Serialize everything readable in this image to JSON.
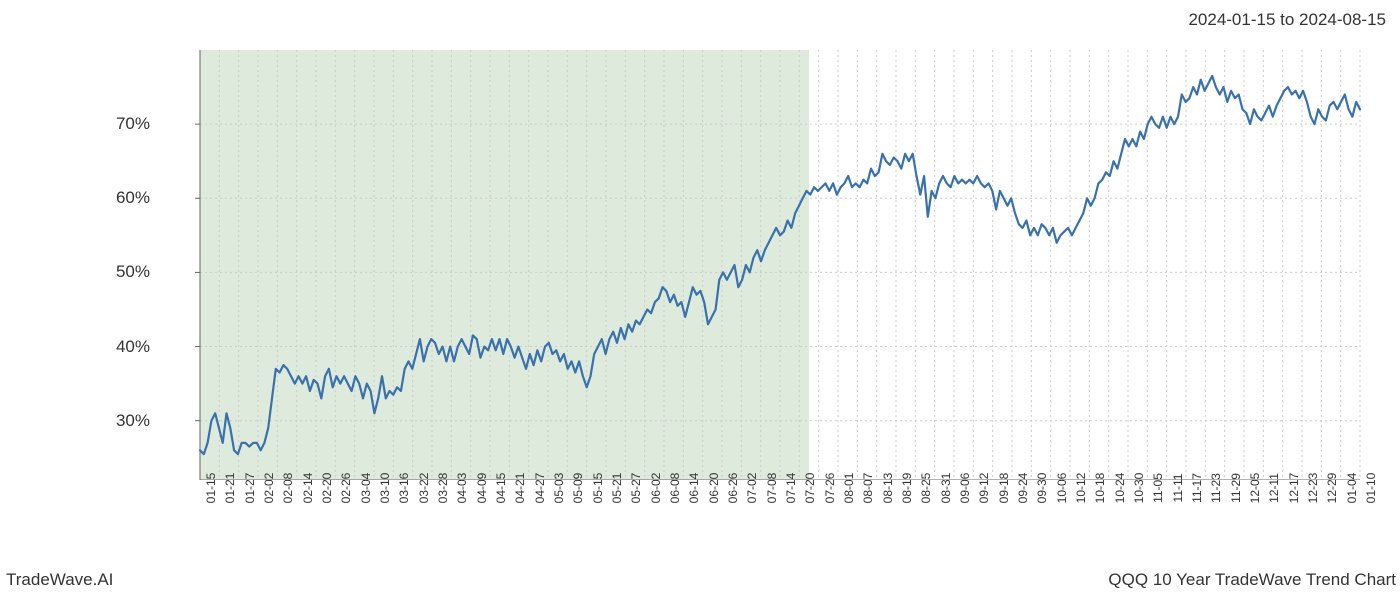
{
  "header": {
    "date_range": "2024-01-15 to 2024-08-15"
  },
  "footer": {
    "left": "TradeWave.AI",
    "right": "QQQ 10 Year TradeWave Trend Chart"
  },
  "chart": {
    "type": "line",
    "background_color": "#ffffff",
    "highlight_region": {
      "fill": "#deeadb",
      "opacity": 1.0,
      "x_start_index": 0,
      "x_end_index": 31
    },
    "line_color": "#3871ad",
    "line_width": 2.2,
    "axis_color": "#666666",
    "grid_color": "#cccccc",
    "grid_dash": "2,3",
    "y_axis": {
      "min": 22,
      "max": 80,
      "ticks": [
        30,
        40,
        50,
        60,
        70
      ],
      "tick_suffix": "%",
      "label_fontsize": 17,
      "label_color": "#333333"
    },
    "x_axis": {
      "labels": [
        "01-15",
        "01-21",
        "01-27",
        "02-02",
        "02-08",
        "02-14",
        "02-20",
        "02-26",
        "03-04",
        "03-10",
        "03-16",
        "03-22",
        "03-28",
        "04-03",
        "04-09",
        "04-15",
        "04-21",
        "04-27",
        "05-03",
        "05-09",
        "05-15",
        "05-21",
        "05-27",
        "06-02",
        "06-08",
        "06-14",
        "06-20",
        "06-26",
        "07-02",
        "07-08",
        "07-14",
        "07-20",
        "07-26",
        "08-01",
        "08-07",
        "08-13",
        "08-19",
        "08-25",
        "08-31",
        "09-06",
        "09-12",
        "09-18",
        "09-24",
        "09-30",
        "10-06",
        "10-12",
        "10-18",
        "10-24",
        "10-30",
        "11-05",
        "11-11",
        "11-17",
        "11-23",
        "11-29",
        "12-05",
        "12-11",
        "12-17",
        "12-23",
        "12-29",
        "01-04",
        "01-10"
      ],
      "label_fontsize": 12,
      "label_color": "#333333",
      "rotation": -90
    },
    "series": [
      {
        "name": "QQQ Trend",
        "color": "#3871ad",
        "values": [
          26,
          25.5,
          27,
          30,
          31,
          29,
          27,
          31,
          29,
          26,
          25.5,
          27,
          27,
          26.5,
          27,
          27,
          26,
          27,
          29,
          33,
          37,
          36.5,
          37.5,
          37,
          36,
          35,
          36,
          35,
          36,
          34,
          35.5,
          35,
          33,
          36,
          37,
          34.5,
          36,
          35,
          36,
          35,
          34,
          36,
          35,
          33,
          35,
          34,
          31,
          33,
          36,
          33,
          34,
          33.5,
          34.5,
          34,
          37,
          38,
          37,
          39,
          41,
          38,
          40,
          41,
          40.5,
          39,
          40,
          38,
          40,
          38,
          40,
          41,
          40,
          39,
          41.5,
          41,
          38.5,
          40,
          39.5,
          41,
          39.5,
          41,
          39,
          41,
          40,
          38.5,
          40,
          38.5,
          37,
          39,
          37.5,
          39.5,
          38,
          40,
          40.5,
          39,
          39.5,
          38,
          39,
          37,
          38,
          36.5,
          38,
          36,
          34.5,
          36,
          39,
          40,
          41,
          39,
          41,
          42,
          40.5,
          42.5,
          41,
          43,
          42,
          43.5,
          43,
          44,
          45,
          44.5,
          46,
          46.5,
          48,
          47.5,
          46,
          47,
          45.5,
          46,
          44,
          46,
          48,
          47,
          47.5,
          46,
          43,
          44,
          45,
          49,
          50,
          49,
          50,
          51,
          48,
          49,
          51,
          50,
          52,
          53,
          51.5,
          53,
          54,
          55,
          56,
          55,
          55.5,
          57,
          56,
          58,
          59,
          60,
          61,
          60.5,
          61.5,
          61,
          61.5,
          62,
          61,
          62,
          60.5,
          61.5,
          62,
          63,
          61.5,
          62,
          61.5,
          62.5,
          62,
          64,
          63,
          63.5,
          66,
          65,
          64.5,
          65.5,
          65,
          64,
          66,
          65,
          66,
          63,
          60.5,
          63,
          57.5,
          61,
          60,
          62,
          63,
          62,
          61.5,
          63,
          62,
          62.5,
          62,
          62.5,
          62,
          63,
          62,
          61.5,
          62,
          61,
          58.5,
          61,
          60,
          59,
          60,
          58,
          56.5,
          56,
          57,
          55,
          56,
          55,
          56.5,
          56,
          55,
          56,
          54,
          55,
          55.5,
          56,
          55,
          56,
          57,
          58,
          60,
          59,
          60,
          62,
          62.5,
          63.5,
          63,
          65,
          64,
          66,
          68,
          67,
          68,
          67,
          69,
          68,
          70,
          71,
          70,
          69.5,
          71,
          69.5,
          71,
          70,
          71,
          74,
          73,
          73.5,
          75,
          74,
          76,
          74.5,
          75.5,
          76.5,
          75,
          74,
          75,
          73,
          74.5,
          73.5,
          74,
          72,
          71.5,
          70,
          72,
          71,
          70.5,
          71.5,
          72.5,
          71,
          72.5,
          73.5,
          74.5,
          75,
          74,
          74.5,
          73.5,
          74.5,
          73,
          71,
          70,
          72,
          71,
          70.5,
          72.5,
          73,
          72,
          73,
          74,
          72,
          71,
          73,
          72
        ]
      }
    ]
  }
}
